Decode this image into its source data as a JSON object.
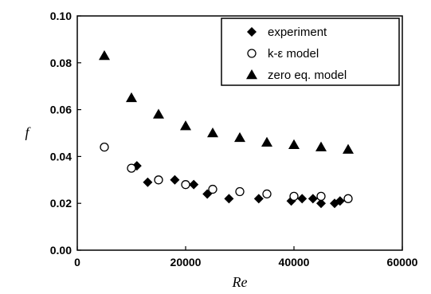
{
  "chart_data": {
    "type": "scatter",
    "title": "",
    "xlabel": "Re",
    "ylabel": "f",
    "xlim": [
      0,
      60000
    ],
    "ylim": [
      0.0,
      0.1
    ],
    "xticks": [
      0,
      20000,
      40000,
      60000
    ],
    "yticks": [
      0.0,
      0.02,
      0.04,
      0.06,
      0.08,
      0.1
    ],
    "xtick_labels": [
      "0",
      "20000",
      "40000",
      "60000"
    ],
    "ytick_labels": [
      "0.00",
      "0.02",
      "0.04",
      "0.06",
      "0.08",
      "0.10"
    ],
    "grid": false,
    "legend_position": "top-right",
    "series": [
      {
        "name": "experiment",
        "marker": "diamond-filled",
        "x": [
          11000,
          13000,
          18000,
          21500,
          24000,
          28000,
          33500,
          39500,
          41500,
          43500,
          45000,
          47500,
          48500
        ],
        "y": [
          0.036,
          0.029,
          0.03,
          0.028,
          0.024,
          0.022,
          0.022,
          0.021,
          0.022,
          0.022,
          0.02,
          0.02,
          0.021
        ]
      },
      {
        "name": "k-ε model",
        "marker": "circle-open",
        "x": [
          5000,
          10000,
          15000,
          20000,
          25000,
          30000,
          35000,
          40000,
          45000,
          50000
        ],
        "y": [
          0.044,
          0.035,
          0.03,
          0.028,
          0.026,
          0.025,
          0.024,
          0.023,
          0.023,
          0.022
        ]
      },
      {
        "name": "zero eq. model",
        "marker": "triangle-filled",
        "x": [
          5000,
          10000,
          15000,
          20000,
          25000,
          30000,
          35000,
          40000,
          45000,
          50000
        ],
        "y": [
          0.083,
          0.065,
          0.058,
          0.053,
          0.05,
          0.048,
          0.046,
          0.045,
          0.044,
          0.043
        ]
      }
    ]
  }
}
